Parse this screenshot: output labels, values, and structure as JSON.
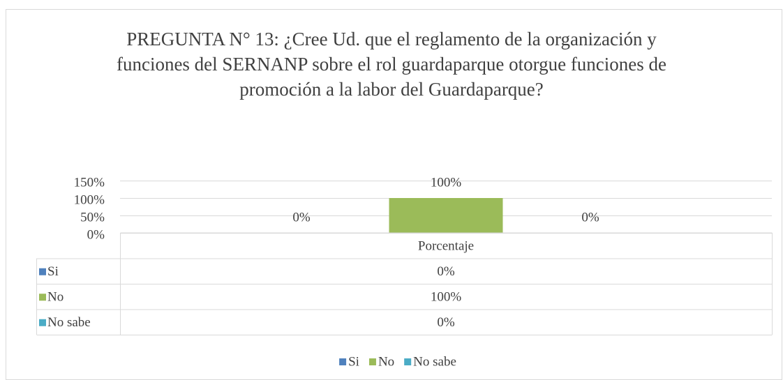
{
  "chart_data": {
    "type": "bar",
    "title": "PREGUNTA N° 13: ¿Cree Ud. que el reglamento de la organización y funciones del SERNANP sobre el rol guardaparque otorgue funciones de promoción a la labor del Guardaparque?",
    "categories": [
      "Porcentaje"
    ],
    "series": [
      {
        "name": "Si",
        "color": "#4f81bd",
        "values": [
          0
        ],
        "value_labels": [
          "0%"
        ]
      },
      {
        "name": "No",
        "color": "#9bbb59",
        "values": [
          100
        ],
        "value_labels": [
          "100%"
        ]
      },
      {
        "name": "No sabe",
        "color": "#4bacc6",
        "values": [
          0
        ],
        "value_labels": [
          "0%"
        ]
      }
    ],
    "ylim": [
      0,
      150
    ],
    "yticks": [
      {
        "value": 0,
        "label": "0%"
      },
      {
        "value": 50,
        "label": "50%"
      },
      {
        "value": 100,
        "label": "100%"
      },
      {
        "value": 150,
        "label": "150%"
      }
    ],
    "grid": true,
    "legend": "bottom",
    "data_table": true
  }
}
